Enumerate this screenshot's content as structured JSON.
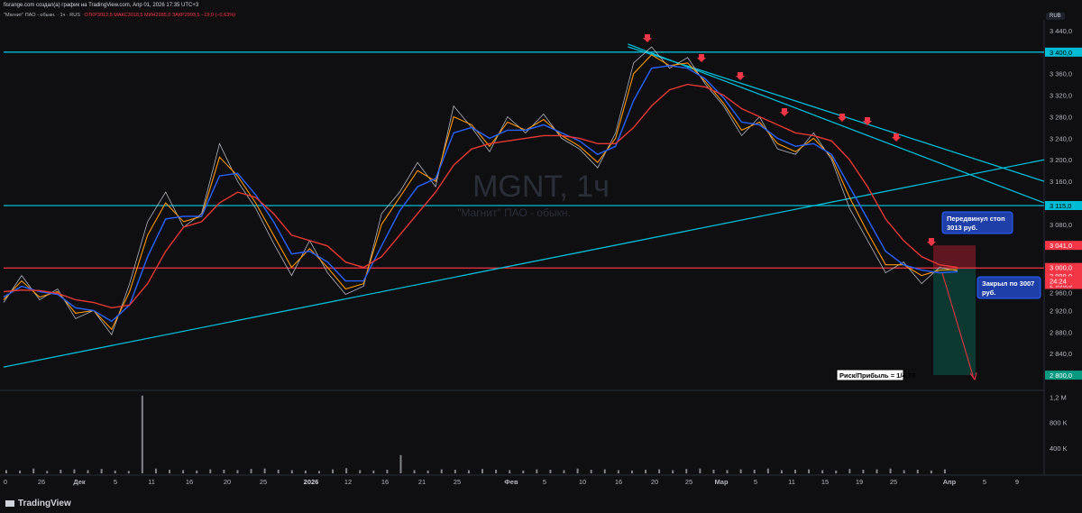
{
  "header": {
    "source_line": "fisrange.com создал(а) график на TradingView.com, Апр 01, 2026 17:35 UTC+3",
    "legend_title": "\"Магнит\" ПАО - обыкн. · 1ч · RUS",
    "legend_values": "ОТКР3012,5  МАКС3018,5  МИН2985,0  ЗАКР2993,5  −19,0 (−0,63%)",
    "currency": "RUB"
  },
  "watermark": {
    "ticker": "MGNT, 1ч",
    "name": "\"Магнит\" ПАО - обыкн."
  },
  "annotations": {
    "stop_note": [
      "Передвинул стоп",
      "3013 руб."
    ],
    "close_note": [
      "Закрыл по 3007",
      "руб."
    ],
    "risk_reward": "Риск/Прибыль = 1/4,73"
  },
  "footer": {
    "brand": "TradingView"
  },
  "colors": {
    "background": "#0f0f12",
    "price_line": "#b2b5be",
    "ema_fast": "#ff9800",
    "ema_mid": "#2962ff",
    "ema_slow": "#e53935",
    "trendline": "#00bcd4",
    "level_red": "#f23645",
    "arrow": "#f23645",
    "stop_box": "#7b1a25",
    "target_box": "#0a3f36",
    "volume": "#b2b5be"
  },
  "chart_data": {
    "type": "line",
    "title": "MGNT, 1ч",
    "ylim": [
      2780,
      3460
    ],
    "y_ticks": [
      3440,
      3400,
      3360,
      3320,
      3280,
      3240,
      3200,
      3160,
      3115,
      3080,
      3041,
      3000,
      2999,
      2993.5,
      2960,
      2920,
      2880,
      2840,
      2800
    ],
    "y_tick_labels": [
      "3 440,0",
      "3 400,0",
      "3 360,0",
      "3 320,0",
      "3 280,0",
      "3 240,0",
      "3 200,0",
      "3 160,0",
      "3 115,0",
      "3 080,0",
      "3 041,0",
      "3 000,0",
      "2 999,0",
      "2 993,5",
      "2 960,0",
      "2 920,0",
      "2 880,0",
      "2 840,0",
      "2 800,0"
    ],
    "price_tag_time": "24:24",
    "x_tick_labels": [
      "0",
      "26",
      "Дек",
      "5",
      "11",
      "16",
      "20",
      "25",
      "2026",
      "12",
      "16",
      "21",
      "25",
      "Фев",
      "5",
      "10",
      "16",
      "20",
      "25",
      "Мар",
      "5",
      "11",
      "15",
      "19",
      "25",
      "Апр",
      "5",
      "9"
    ],
    "series": [
      {
        "name": "price",
        "values": [
          2935,
          2985,
          2940,
          2960,
          2905,
          2920,
          2875,
          2970,
          3085,
          3140,
          3075,
          3100,
          3230,
          3160,
          3110,
          3045,
          2985,
          3050,
          2990,
          2950,
          2965,
          3100,
          3140,
          3195,
          3150,
          3300,
          3260,
          3215,
          3280,
          3250,
          3285,
          3240,
          3220,
          3185,
          3250,
          3380,
          3410,
          3370,
          3390,
          3340,
          3300,
          3245,
          3280,
          3220,
          3210,
          3250,
          3200,
          3110,
          3050,
          2990,
          3010,
          2970,
          3000,
          2993.5
        ]
      },
      {
        "name": "ema_fast",
        "values": [
          2940,
          2975,
          2945,
          2955,
          2915,
          2920,
          2885,
          2955,
          3060,
          3120,
          3085,
          3095,
          3205,
          3170,
          3120,
          3060,
          3000,
          3035,
          3000,
          2960,
          2970,
          3080,
          3130,
          3180,
          3160,
          3280,
          3265,
          3225,
          3270,
          3255,
          3275,
          3245,
          3225,
          3195,
          3240,
          3360,
          3395,
          3375,
          3380,
          3345,
          3305,
          3255,
          3270,
          3230,
          3215,
          3240,
          3205,
          3130,
          3065,
          3005,
          3005,
          2985,
          2995,
          2996
        ]
      },
      {
        "name": "ema_mid",
        "values": [
          2945,
          2965,
          2955,
          2950,
          2925,
          2920,
          2900,
          2930,
          3020,
          3090,
          3095,
          3095,
          3170,
          3175,
          3135,
          3085,
          3025,
          3030,
          3010,
          2975,
          2975,
          3040,
          3105,
          3150,
          3165,
          3250,
          3260,
          3240,
          3255,
          3255,
          3265,
          3250,
          3235,
          3210,
          3225,
          3310,
          3370,
          3375,
          3370,
          3350,
          3315,
          3270,
          3265,
          3240,
          3225,
          3230,
          3210,
          3150,
          3090,
          3030,
          3005,
          2995,
          2990,
          2992
        ]
      },
      {
        "name": "ema_slow",
        "values": [
          2955,
          2958,
          2957,
          2952,
          2940,
          2935,
          2925,
          2930,
          2970,
          3030,
          3075,
          3085,
          3120,
          3140,
          3130,
          3100,
          3060,
          3050,
          3040,
          3010,
          3000,
          3020,
          3060,
          3100,
          3140,
          3190,
          3220,
          3230,
          3235,
          3240,
          3245,
          3245,
          3240,
          3230,
          3230,
          3260,
          3300,
          3330,
          3340,
          3335,
          3320,
          3295,
          3280,
          3265,
          3250,
          3245,
          3235,
          3200,
          3150,
          3090,
          3050,
          3020,
          3005,
          3000
        ]
      }
    ],
    "horizontal_levels": [
      3400,
      3115,
      2999
    ],
    "trendlines": [
      {
        "name": "support",
        "from": [
          0,
          2815
        ],
        "to": [
          1,
          3200
        ]
      },
      {
        "name": "resistance",
        "from": [
          0.6,
          3415
        ],
        "to": [
          1,
          3120
        ]
      },
      {
        "name": "resistance2",
        "from": [
          0.6,
          3410
        ],
        "to": [
          1,
          3160
        ]
      }
    ],
    "risk_reward_box": {
      "entry": 2999,
      "stop": 3041,
      "target": 2800
    },
    "volume_axis": {
      "labels": [
        "1,2 M",
        "800 K",
        "400 K"
      ],
      "values": [
        1200000,
        800000,
        400000
      ]
    },
    "volume": [
      40,
      35,
      60,
      30,
      45,
      50,
      40,
      55,
      35,
      30,
      980,
      60,
      45,
      40,
      35,
      50,
      45,
      40,
      55,
      60,
      45,
      40,
      35,
      30,
      50,
      65,
      40,
      35,
      45,
      230,
      40,
      35,
      50,
      45,
      40,
      55,
      45,
      40,
      35,
      50,
      45,
      40,
      60,
      45,
      50,
      40,
      35,
      45,
      50,
      40,
      55,
      60,
      45,
      40,
      50,
      45,
      60,
      40,
      45,
      50,
      40,
      35,
      55,
      45,
      50,
      60,
      40,
      45,
      35,
      50
    ]
  }
}
